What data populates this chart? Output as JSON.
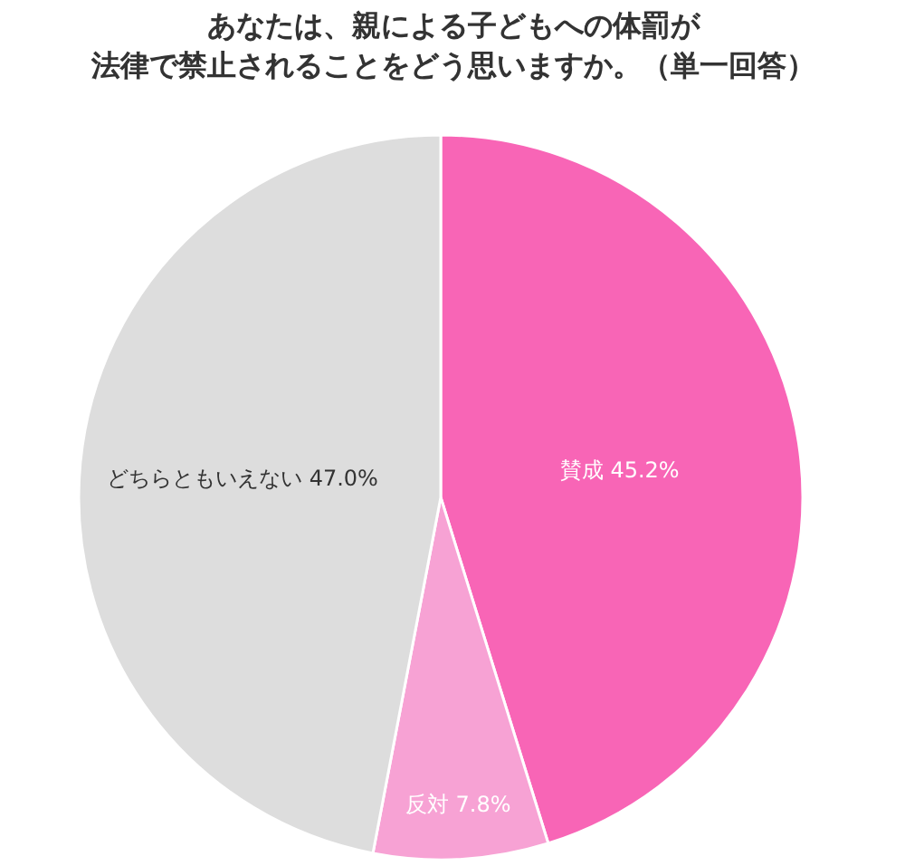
{
  "chart_data": {
    "type": "pie",
    "title": "あなたは、親による子どもへの体罰が",
    "subtitle": "法律で禁止されることをどう思いますか。（単一回答）",
    "categories": [
      "賛成",
      "反対",
      "どちらともいえない"
    ],
    "values": [
      45.2,
      7.8,
      47.0
    ],
    "colors": [
      "#f865b6",
      "#f7a2d4",
      "#dddddd"
    ],
    "value_labels": [
      "45.2%",
      "7.8%",
      "47.0%"
    ]
  }
}
